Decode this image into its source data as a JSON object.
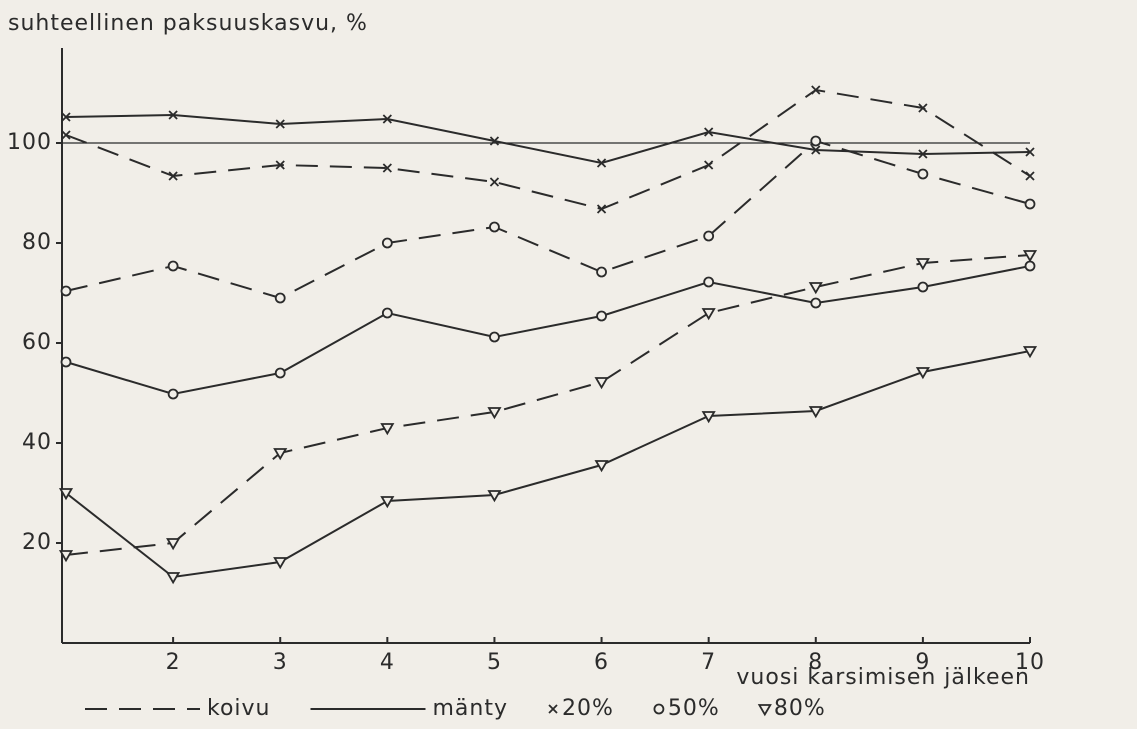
{
  "chart_data": {
    "type": "line",
    "ylabel": "suhteellinen paksuuskasvu, %",
    "xlabel": "vuosi karsimisen jälkeen",
    "x": [
      1,
      2,
      3,
      4,
      5,
      6,
      7,
      8,
      9,
      10
    ],
    "xlim": [
      1,
      10
    ],
    "xticks": [
      2,
      3,
      4,
      5,
      6,
      7,
      8,
      9,
      10
    ],
    "ylim": [
      0,
      120
    ],
    "yticks": [
      20,
      40,
      60,
      80,
      100
    ],
    "reference_line": 100,
    "color": "#2b2b2b",
    "series": [
      {
        "style": "dashed",
        "marker": "x",
        "values": [
          101.6,
          93.4,
          95.6,
          95,
          92.2,
          86.8,
          95.6,
          110.6,
          107,
          93.4
        ]
      },
      {
        "style": "solid",
        "marker": "x",
        "values": [
          105.2,
          105.6,
          103.8,
          104.8,
          100.4,
          96,
          102.2,
          98.6,
          97.8,
          98.2
        ]
      },
      {
        "style": "dashed",
        "marker": "o",
        "values": [
          70.4,
          75.4,
          69,
          80,
          83.2,
          74.2,
          81.4,
          100.4,
          93.8,
          87.8
        ]
      },
      {
        "style": "solid",
        "marker": "o",
        "values": [
          56.2,
          49.8,
          54,
          66,
          61.2,
          65.4,
          72.2,
          68,
          71.2,
          75.4
        ]
      },
      {
        "style": "dashed",
        "marker": "v",
        "values": [
          17.6,
          20,
          38,
          43,
          46.2,
          52.2,
          66,
          71.2,
          76,
          77.6
        ]
      },
      {
        "style": "solid",
        "marker": "v",
        "values": [
          30,
          13.2,
          16.2,
          28.4,
          29.6,
          35.6,
          45.4,
          46.4,
          54.2,
          58.4
        ]
      }
    ],
    "legend": [
      {
        "label": "koivu",
        "style": "dashed"
      },
      {
        "label": "mänty",
        "style": "solid"
      },
      {
        "label": "20%",
        "marker": "x"
      },
      {
        "label": "50%",
        "marker": "o"
      },
      {
        "label": "80%",
        "marker": "v"
      }
    ]
  }
}
